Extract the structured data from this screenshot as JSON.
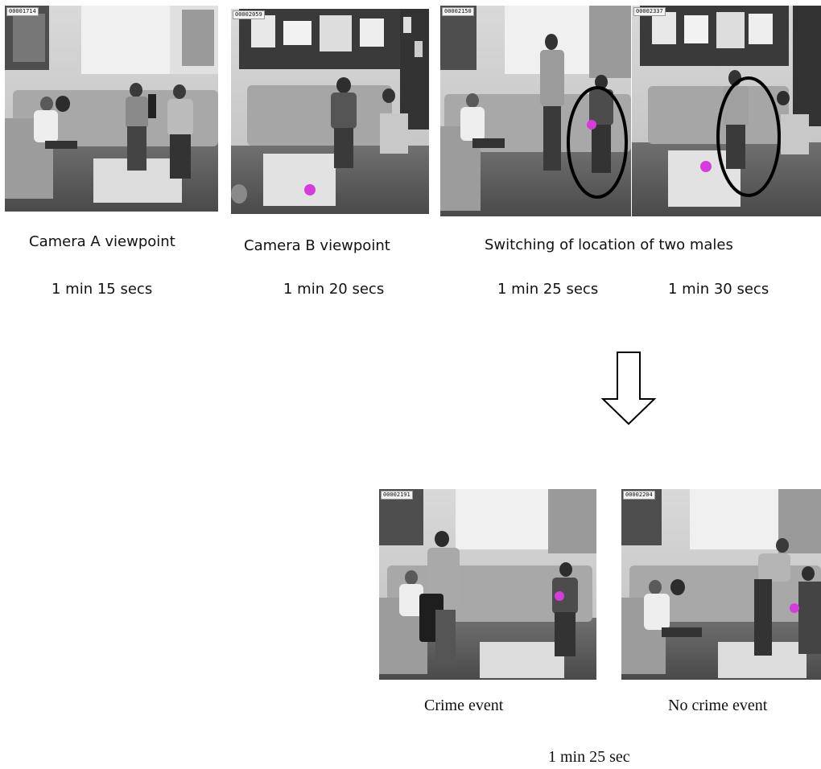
{
  "frames": [
    {
      "id": "frame-a",
      "label": "00001714"
    },
    {
      "id": "frame-b",
      "label": "00002059"
    },
    {
      "id": "frame-c",
      "label": "00002150"
    },
    {
      "id": "frame-d",
      "label": "00002337"
    },
    {
      "id": "frame-e",
      "label": "00002191"
    },
    {
      "id": "frame-f",
      "label": "00002204"
    }
  ],
  "captions": {
    "camera_a": "Camera A viewpoint",
    "camera_b": "Camera B viewpoint",
    "switching": "Switching of location of two males",
    "time_1": "1 min 15 secs",
    "time_2": "1 min 20 secs",
    "time_3": "1 min 25 secs",
    "time_4": "1 min 30 secs",
    "crime": "Crime event",
    "no_crime": "No crime event",
    "bottom_time": "1 min 25 sec"
  },
  "colors": {
    "highlight": "#d63cdc",
    "ellipse": "#000000"
  },
  "icons": {
    "arrow": "down-arrow-icon"
  }
}
